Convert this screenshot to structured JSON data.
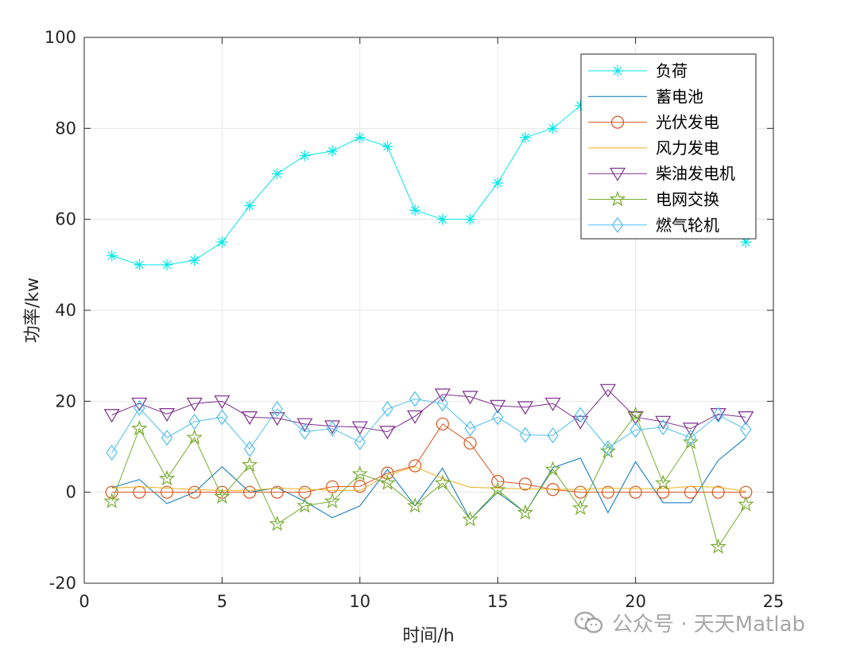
{
  "chart_data": {
    "type": "line",
    "xlabel": "时间/h",
    "ylabel": "功率/kw",
    "xlim": [
      0,
      25
    ],
    "ylim": [
      -20,
      100
    ],
    "xticks": [
      0,
      5,
      10,
      15,
      20,
      25
    ],
    "yticks": [
      -20,
      0,
      20,
      40,
      60,
      80,
      100
    ],
    "grid": true,
    "legend_position": "top-right",
    "x": [
      1,
      2,
      3,
      4,
      5,
      6,
      7,
      8,
      9,
      10,
      11,
      12,
      13,
      14,
      15,
      16,
      17,
      18,
      19,
      20,
      21,
      22,
      23,
      24
    ],
    "series": [
      {
        "name": "负荷",
        "color": "#00e6e6",
        "marker": "asterisk",
        "values": [
          52,
          50,
          50,
          51,
          55,
          63,
          70,
          74,
          75,
          78,
          76,
          62,
          60,
          60,
          68,
          78,
          80,
          85,
          88,
          90,
          87,
          80,
          65,
          55
        ]
      },
      {
        "name": "蓄电池",
        "color": "#0072bd",
        "marker": "none",
        "values": [
          1,
          2.8,
          -2.5,
          0,
          5.6,
          0,
          1,
          -2,
          -5.6,
          -3,
          5,
          -3,
          5.3,
          -6,
          0,
          -4.5,
          5.4,
          7.5,
          -4.5,
          6.7,
          -2.3,
          -2.3,
          7,
          12
        ]
      },
      {
        "name": "光伏发电",
        "color": "#d95319",
        "marker": "circle",
        "values": [
          0,
          0,
          0,
          0,
          0,
          0,
          0,
          0,
          1.2,
          1.3,
          4.2,
          5.8,
          15,
          10.8,
          2.4,
          1.8,
          0.6,
          0,
          0,
          0,
          0,
          0,
          0,
          0
        ]
      },
      {
        "name": "风力发电",
        "color": "#edb120",
        "marker": "none",
        "values": [
          0.9,
          1.2,
          0.9,
          0.6,
          0.4,
          0.4,
          0.9,
          0.7,
          0.4,
          0.4,
          3.8,
          5.6,
          3,
          1.1,
          0.9,
          0.7,
          0.7,
          0.6,
          0.9,
          0.8,
          0.8,
          1.3,
          1.1,
          0.2
        ]
      },
      {
        "name": "柴油发电机",
        "color": "#7e2f8e",
        "marker": "triangle-down",
        "values": [
          17,
          19.5,
          17.2,
          19.5,
          20,
          16.5,
          16.3,
          15,
          14.5,
          14.3,
          13.3,
          16.7,
          21.5,
          21,
          19,
          18.7,
          19.5,
          15.5,
          22.5,
          16.5,
          15.5,
          14,
          17.2,
          16.5
        ]
      },
      {
        "name": "电网交换",
        "color": "#77ac30",
        "marker": "pentagram",
        "values": [
          -2,
          14,
          3,
          12,
          -1,
          6,
          -7,
          -3,
          -2,
          4,
          2,
          -3,
          2,
          -6,
          0.5,
          -4.5,
          5,
          -3.5,
          9,
          17,
          2,
          11,
          -12,
          -2.7
        ]
      },
      {
        "name": "燃气轮机",
        "color": "#4dbeee",
        "marker": "diamond",
        "values": [
          8.7,
          18.5,
          12,
          15.5,
          16.5,
          9.5,
          18.3,
          13.3,
          14,
          11,
          18.3,
          20.5,
          19.5,
          14,
          16.5,
          12.6,
          12.5,
          17,
          9.7,
          13.7,
          14.3,
          12,
          17,
          13.8
        ]
      }
    ]
  },
  "watermark": {
    "text": "公众号 · 天天Matlab"
  }
}
